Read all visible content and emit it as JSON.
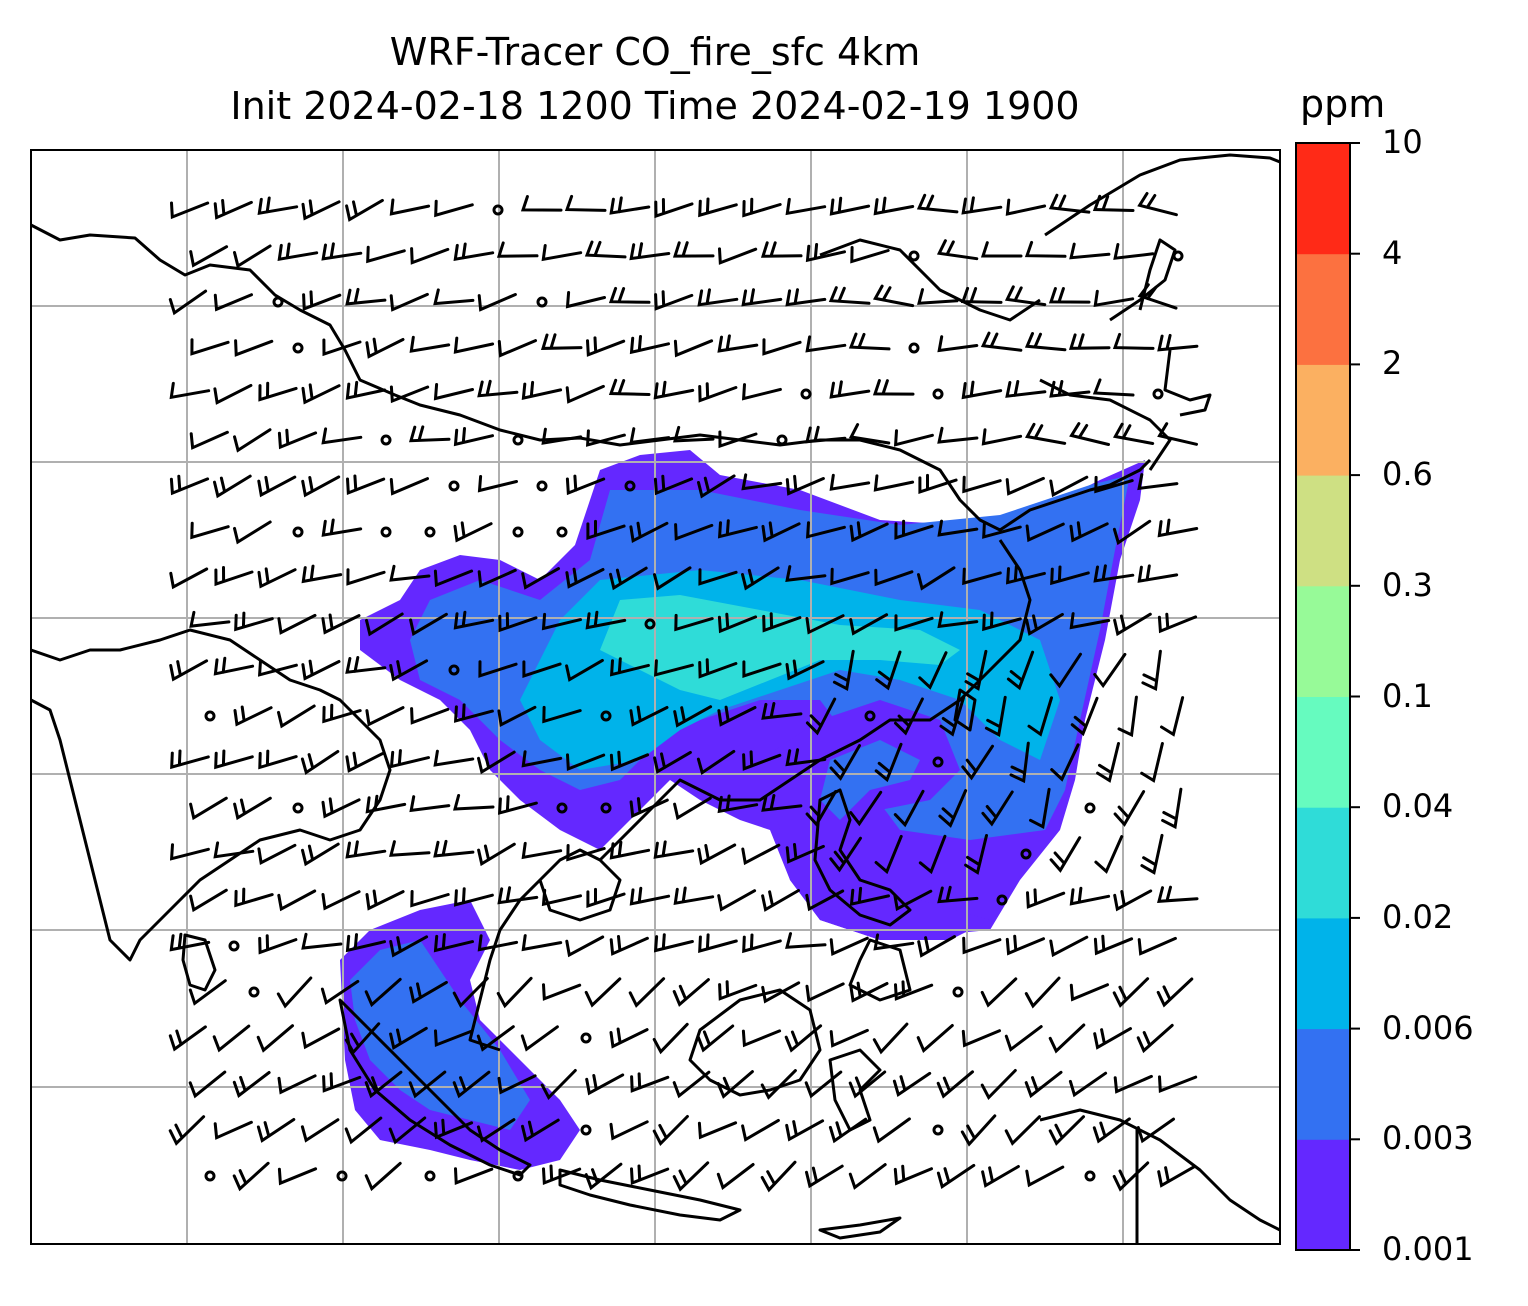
{
  "title_line1": "WRF-Tracer CO_fire_sfc 4km",
  "title_line2": "Init 2024-02-18 1200 Time 2024-02-19 1900",
  "colorbar": {
    "unit": "ppm",
    "levels": [
      "0.001",
      "0.003",
      "0.006",
      "0.02",
      "0.04",
      "0.1",
      "0.3",
      "0.6",
      "2",
      "4",
      "10"
    ],
    "colors": [
      "#6428ff",
      "#3371f2",
      "#00b3ea",
      "#2fdcd8",
      "#66fbbf",
      "#97fa98",
      "#cee083",
      "#fbb061",
      "#fc7140",
      "#ff2a17"
    ]
  },
  "map": {
    "gridlines": true,
    "coastline_color": "#000000",
    "grid_color": "#b0b0b0"
  }
}
